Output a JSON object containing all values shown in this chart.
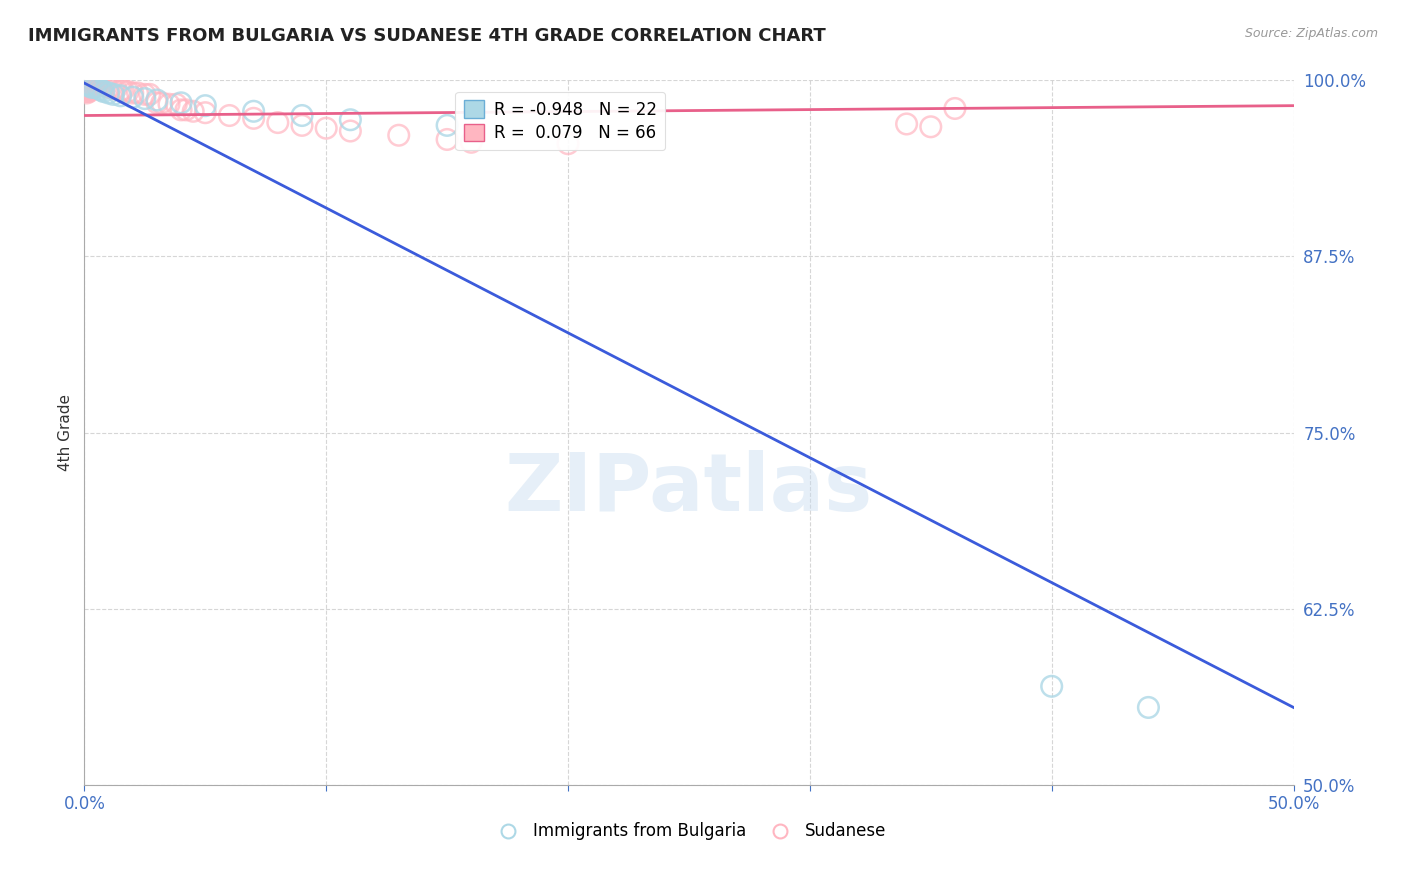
{
  "title": "IMMIGRANTS FROM BULGARIA VS SUDANESE 4TH GRADE CORRELATION CHART",
  "source": "Source: ZipAtlas.com",
  "ylabel": "4th Grade",
  "xlim": [
    0.0,
    0.5
  ],
  "ylim": [
    0.5,
    1.0
  ],
  "xtick_positions": [
    0.0,
    0.1,
    0.2,
    0.3,
    0.4,
    0.5
  ],
  "xticklabels": [
    "0.0%",
    "",
    "",
    "",
    "",
    "50.0%"
  ],
  "ytick_positions": [
    0.5,
    0.625,
    0.75,
    0.875,
    1.0
  ],
  "yticklabels": [
    "50.0%",
    "62.5%",
    "75.0%",
    "87.5%",
    "100.0%"
  ],
  "legend_entries": [
    {
      "label": "Immigrants from Bulgaria",
      "color": "#ADD8E6"
    },
    {
      "label": "Sudanese",
      "color": "#FFB6C1"
    }
  ],
  "blue_R": -0.948,
  "blue_N": 22,
  "pink_R": 0.079,
  "pink_N": 66,
  "blue_scatter": [
    [
      0.001,
      0.997
    ],
    [
      0.002,
      0.996
    ],
    [
      0.003,
      0.995
    ],
    [
      0.004,
      0.995
    ],
    [
      0.005,
      0.995
    ],
    [
      0.006,
      0.994
    ],
    [
      0.007,
      0.993
    ],
    [
      0.008,
      0.992
    ],
    [
      0.01,
      0.991
    ],
    [
      0.012,
      0.99
    ],
    [
      0.015,
      0.989
    ],
    [
      0.02,
      0.988
    ],
    [
      0.025,
      0.987
    ],
    [
      0.03,
      0.986
    ],
    [
      0.04,
      0.984
    ],
    [
      0.05,
      0.982
    ],
    [
      0.07,
      0.978
    ],
    [
      0.09,
      0.975
    ],
    [
      0.11,
      0.972
    ],
    [
      0.15,
      0.968
    ],
    [
      0.4,
      0.57
    ],
    [
      0.44,
      0.555
    ]
  ],
  "pink_scatter": [
    [
      0.001,
      0.998
    ],
    [
      0.001,
      0.997
    ],
    [
      0.001,
      0.996
    ],
    [
      0.001,
      0.995
    ],
    [
      0.001,
      0.994
    ],
    [
      0.001,
      0.993
    ],
    [
      0.001,
      0.992
    ],
    [
      0.001,
      0.991
    ],
    [
      0.002,
      0.999
    ],
    [
      0.002,
      0.998
    ],
    [
      0.002,
      0.997
    ],
    [
      0.002,
      0.996
    ],
    [
      0.002,
      0.995
    ],
    [
      0.002,
      0.994
    ],
    [
      0.002,
      0.993
    ],
    [
      0.002,
      0.992
    ],
    [
      0.003,
      0.999
    ],
    [
      0.003,
      0.998
    ],
    [
      0.003,
      0.997
    ],
    [
      0.003,
      0.996
    ],
    [
      0.003,
      0.995
    ],
    [
      0.003,
      0.994
    ],
    [
      0.004,
      0.999
    ],
    [
      0.004,
      0.998
    ],
    [
      0.004,
      0.997
    ],
    [
      0.004,
      0.996
    ],
    [
      0.005,
      0.999
    ],
    [
      0.005,
      0.998
    ],
    [
      0.005,
      0.997
    ],
    [
      0.006,
      0.998
    ],
    [
      0.006,
      0.997
    ],
    [
      0.007,
      0.997
    ],
    [
      0.008,
      0.996
    ],
    [
      0.009,
      0.996
    ],
    [
      0.01,
      0.995
    ],
    [
      0.011,
      0.995
    ],
    [
      0.012,
      0.994
    ],
    [
      0.013,
      0.994
    ],
    [
      0.015,
      0.993
    ],
    [
      0.016,
      0.993
    ],
    [
      0.018,
      0.992
    ],
    [
      0.02,
      0.991
    ],
    [
      0.022,
      0.991
    ],
    [
      0.025,
      0.99
    ],
    [
      0.027,
      0.99
    ],
    [
      0.03,
      0.984
    ],
    [
      0.032,
      0.984
    ],
    [
      0.035,
      0.983
    ],
    [
      0.038,
      0.983
    ],
    [
      0.04,
      0.979
    ],
    [
      0.042,
      0.979
    ],
    [
      0.045,
      0.978
    ],
    [
      0.05,
      0.977
    ],
    [
      0.06,
      0.975
    ],
    [
      0.07,
      0.973
    ],
    [
      0.08,
      0.97
    ],
    [
      0.09,
      0.968
    ],
    [
      0.1,
      0.966
    ],
    [
      0.11,
      0.964
    ],
    [
      0.13,
      0.961
    ],
    [
      0.15,
      0.958
    ],
    [
      0.16,
      0.956
    ],
    [
      0.2,
      0.955
    ],
    [
      0.34,
      0.969
    ],
    [
      0.35,
      0.967
    ],
    [
      0.36,
      0.98
    ]
  ],
  "blue_line_x": [
    0.0,
    0.5
  ],
  "blue_line_y": [
    0.998,
    0.555
  ],
  "pink_line_x": [
    0.0,
    0.5
  ],
  "pink_line_y": [
    0.975,
    0.982
  ],
  "watermark": "ZIPatlas",
  "title_fontsize": 13,
  "ytick_color": "#4472C4",
  "xtick_color": "#4472C4",
  "grid_color": "#cccccc",
  "background_color": "#ffffff",
  "blue_scatter_color": "#ADD8E6",
  "pink_scatter_color": "#FFB6C1",
  "blue_line_color": "#3B5BDB",
  "pink_line_color": "#E8608A"
}
